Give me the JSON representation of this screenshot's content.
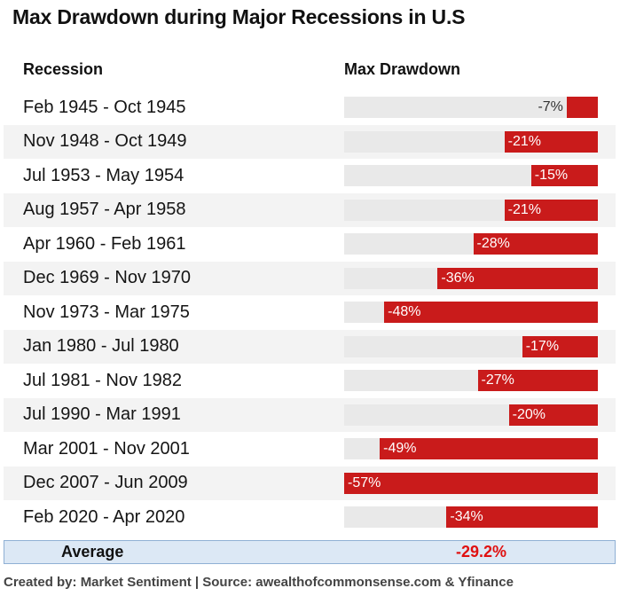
{
  "chart_data": {
    "type": "bar",
    "title": "Max Drawdown during Major Recessions in U.S",
    "column_headers": [
      "Recession",
      "Max Drawdown"
    ],
    "categories": [
      "Feb 1945 - Oct 1945",
      "Nov 1948 - Oct 1949",
      "Jul 1953 - May 1954",
      "Aug 1957 - Apr 1958",
      "Apr 1960 - Feb 1961",
      "Dec 1969 - Nov 1970",
      "Nov 1973 - Mar 1975",
      "Jan 1980 - Jul 1980",
      "Jul 1981 - Nov 1982",
      "Jul 1990 - Mar 1991",
      "Mar 2001 - Nov 2001",
      "Dec 2007 - Jun 2009",
      "Feb 2020 - Apr 2020"
    ],
    "values": [
      -7,
      -21,
      -15,
      -21,
      -28,
      -36,
      -48,
      -17,
      -27,
      -20,
      -49,
      -57,
      -34
    ],
    "value_labels": [
      "-7%",
      "-21%",
      "-15%",
      "-21%",
      "-28%",
      "-36%",
      "-48%",
      "-17%",
      "-27%",
      "-20%",
      "-49%",
      "-57%",
      "-34%"
    ],
    "xlim": [
      -57,
      0
    ],
    "average": {
      "label": "Average",
      "value": "-29.2%"
    },
    "bar_color": "#c91b1b",
    "track_color": "#e9e9e9",
    "average_color": "#e01010"
  },
  "footer": "Created by: Market Sentiment | Source: awealthofcommonsense.com & Yfinance"
}
